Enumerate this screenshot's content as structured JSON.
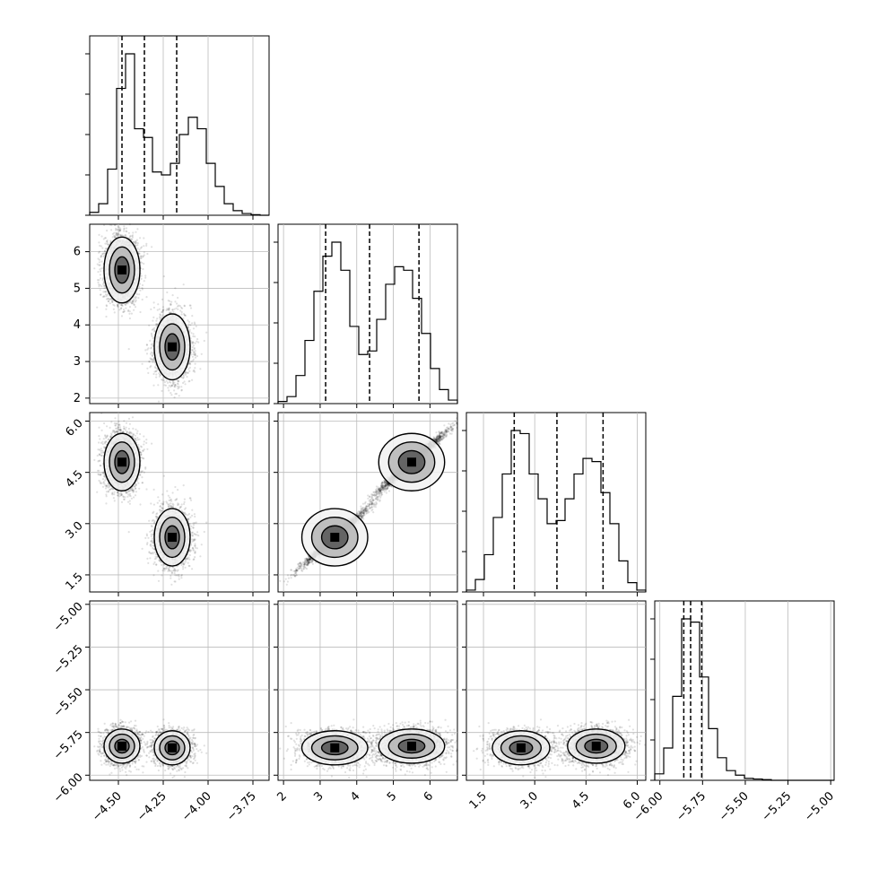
{
  "chart_data": {
    "type": "corner",
    "grid": true,
    "variables": [
      {
        "name": "",
        "range": [
          -4.66,
          -3.66
        ],
        "ticks": [
          "-4.50",
          "-4.25",
          "-4.00",
          "-3.75"
        ],
        "tick_values": [
          -4.5,
          -4.25,
          -4.0,
          -3.75
        ],
        "quantiles": [
          -4.48,
          -4.355,
          -4.175
        ]
      },
      {
        "name": "",
        "range": [
          1.85,
          6.75
        ],
        "ticks": [
          "2",
          "3",
          "4",
          "5",
          "6"
        ],
        "tick_values": [
          2,
          3,
          4,
          5,
          6
        ],
        "quantiles": [
          3.15,
          4.35,
          5.7
        ]
      },
      {
        "name": "",
        "range": [
          1.0,
          6.25
        ],
        "ticks": [
          "1.5",
          "3.0",
          "4.5",
          "6.0"
        ],
        "tick_values": [
          1.5,
          3.0,
          4.5,
          6.0
        ],
        "quantiles": [
          2.4,
          3.65,
          5.0
        ]
      },
      {
        "name": "",
        "range": [
          -6.03,
          -4.98
        ],
        "ticks": [
          "-6.00",
          "-5.75",
          "-5.50",
          "-5.25",
          "-5.00"
        ],
        "tick_values": [
          -6.0,
          -5.75,
          -5.5,
          -5.25,
          -5.0
        ],
        "quantiles": [
          -5.86,
          -5.82,
          -5.755
        ]
      }
    ],
    "histograms": [
      [
        0.5,
        2,
        8,
        22,
        28,
        15,
        13.5,
        7.5,
        7,
        9,
        14,
        17,
        15,
        9,
        5,
        2,
        0.8,
        0.3,
        0.1,
        0
      ],
      [
        0.3,
        1,
        4,
        9,
        16,
        21,
        23,
        19,
        11,
        7,
        7.5,
        12,
        17,
        19.5,
        19,
        15,
        10,
        5,
        2,
        0.5
      ],
      [
        0.3,
        2,
        6,
        12,
        19,
        26,
        25.5,
        19,
        15,
        11,
        11.5,
        15,
        19,
        21.5,
        21,
        16,
        11,
        5,
        1.5,
        0.3
      ],
      [
        1,
        5,
        13,
        25,
        24.5,
        16,
        8,
        3.5,
        1.5,
        0.8,
        0.3,
        0.2,
        0.1,
        0,
        0,
        0,
        0,
        0,
        0,
        0
      ]
    ],
    "modes": [
      {
        "x1": [
          -4.48,
          5.5,
          4.8,
          -5.83
        ],
        "x2": [
          -4.2,
          3.4,
          2.6,
          -5.84
        ]
      }
    ]
  }
}
